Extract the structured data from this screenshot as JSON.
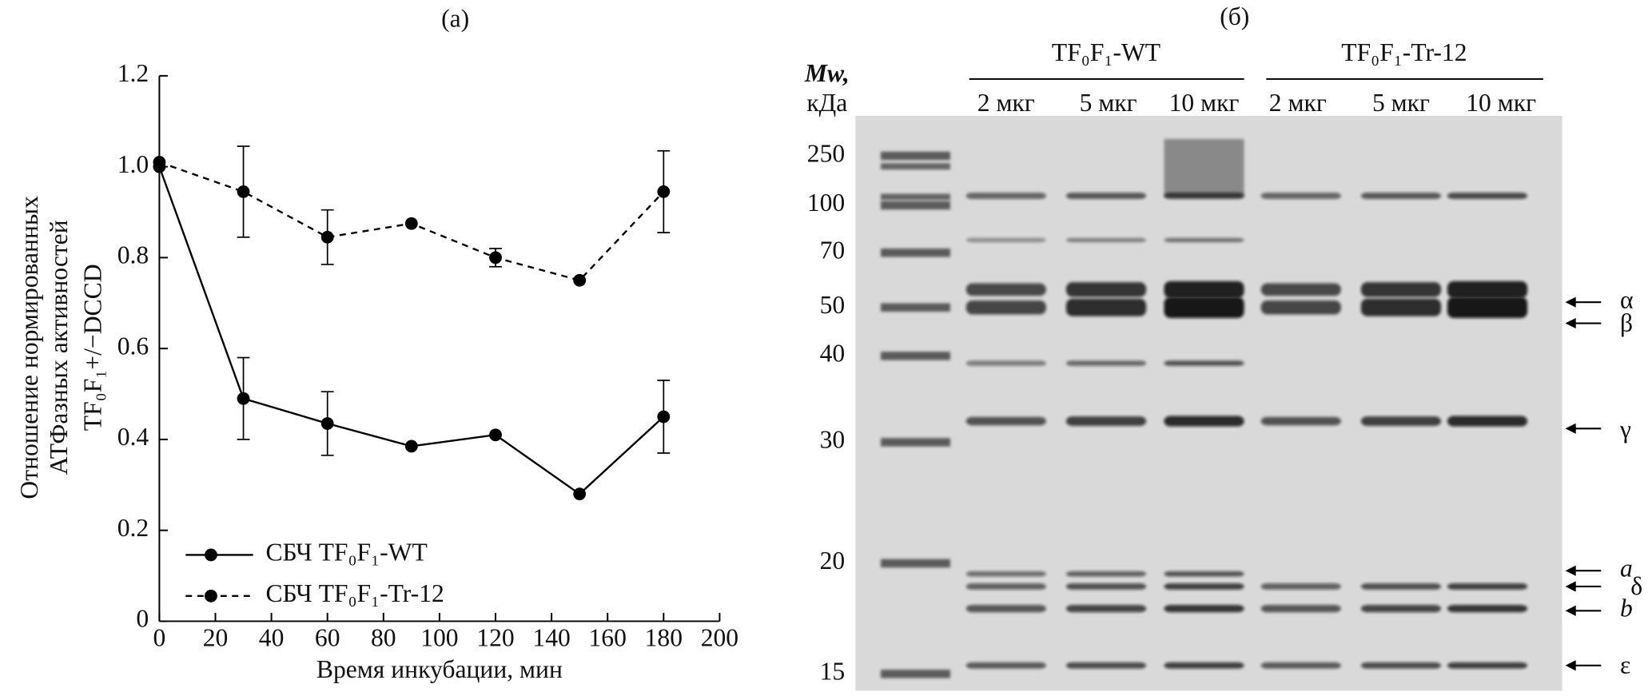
{
  "chart_data": {
    "type": "line",
    "title": "(а)",
    "x_label": "Время инкубации, мин",
    "y_label": [
      "Отношение нормированных",
      "АТФазных активностей",
      "TF₀F₁+/−DCCD"
    ],
    "x": [
      0,
      30,
      60,
      90,
      120,
      150,
      180
    ],
    "series": [
      {
        "name": "СБЧ TF₀F₁-WT",
        "color": "#000000",
        "dash": "solid",
        "values": [
          1.0,
          0.49,
          0.435,
          0.385,
          0.41,
          0.28,
          0.45
        ],
        "errors": [
          null,
          0.09,
          0.07,
          null,
          null,
          null,
          0.08
        ]
      },
      {
        "name": "СБЧ TF₀F₁-Tr-12",
        "color": "#000000",
        "dash": "dashed",
        "values": [
          1.01,
          0.945,
          0.845,
          0.875,
          0.8,
          0.75,
          0.945
        ],
        "errors": [
          null,
          0.1,
          0.06,
          null,
          0.02,
          null,
          0.09
        ]
      }
    ],
    "xlim": [
      0,
      200
    ],
    "xticks": [
      0,
      20,
      40,
      60,
      80,
      100,
      120,
      140,
      160,
      180,
      200
    ],
    "ylim": [
      0,
      1.2
    ],
    "yticks": [
      0,
      0.2,
      0.4,
      0.6,
      0.8,
      {
        "value": 1,
        "label": "1.0"
      },
      1.2
    ],
    "legend": "lower left"
  },
  "gel": {
    "title": "(б)",
    "mw_label": [
      "Mw,",
      "кДа"
    ],
    "groups": [
      "TF₀F₁-WT",
      "TF₀F₁-Tr-12"
    ],
    "lanes": [
      "2 мкг",
      "5 мкг",
      "10 мкг",
      "2 мкг",
      "5 мкг",
      "10 мкг"
    ],
    "markers": [
      250,
      100,
      70,
      50,
      40,
      30,
      20,
      15
    ],
    "bands": [
      "α",
      "β",
      "γ",
      "a",
      "δ",
      "b",
      "ε"
    ]
  }
}
